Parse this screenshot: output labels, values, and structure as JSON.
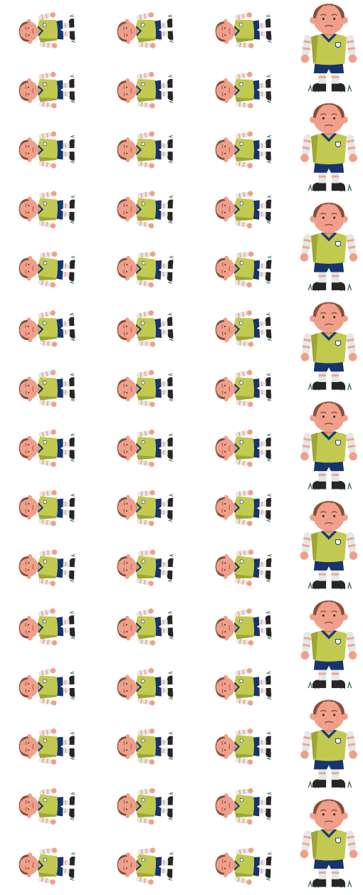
{
  "sprite_sheet": {
    "character": "cartoon-football-player",
    "colors": {
      "background": "#ffffff",
      "skin": "#f0a08a",
      "skin_shade": "#d98470",
      "hair": "#8a4e3c",
      "jersey": "#c2c94f",
      "jersey_shade": "#9ea636",
      "collar": "#1e3a78",
      "shorts": "#17346f",
      "socks_light": "#e4e8e8",
      "socks_stripe": "#f2a68d",
      "boots": "#262626",
      "grass": "#3f6b54",
      "badge": "#ffffff",
      "badge_outline": "#1e3a78"
    },
    "columns": [
      {
        "name": "column-1",
        "pose": "lying-rotated",
        "frames": 15
      },
      {
        "name": "column-2",
        "pose": "lying-rotated",
        "frames": 15
      },
      {
        "name": "column-3",
        "pose": "lying-rotated",
        "frames": 15
      },
      {
        "name": "column-4",
        "pose": "standing-upright",
        "frames": 9
      }
    ]
  }
}
